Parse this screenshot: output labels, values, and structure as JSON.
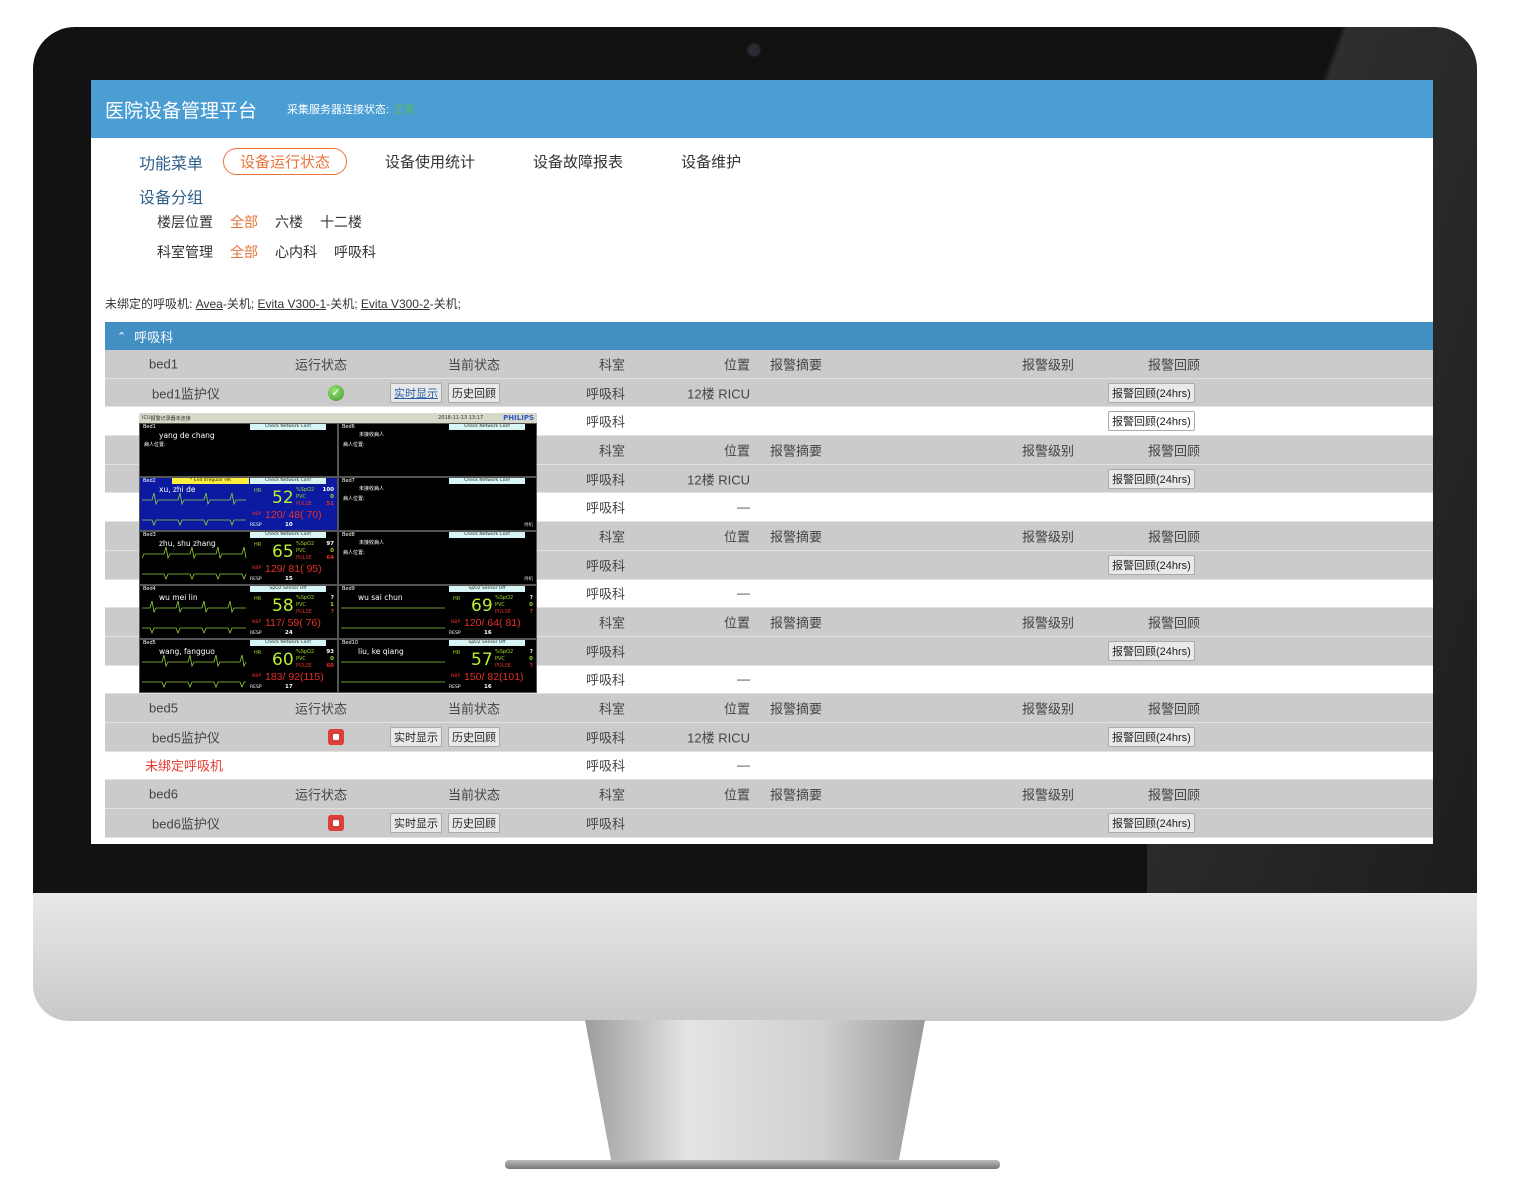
{
  "header": {
    "title": "医院设备管理平台",
    "conn_label": "采集服务器连接状态:",
    "conn_status": "正常",
    "conn_color": "#5cb85c"
  },
  "nav": {
    "label": "功能菜单",
    "items": [
      {
        "label": "设备运行状态",
        "active": true
      },
      {
        "label": "设备使用统计"
      },
      {
        "label": "设备故障报表"
      },
      {
        "label": "设备维护"
      }
    ]
  },
  "group": {
    "title": "设备分组",
    "floor": {
      "label": "楼层位置",
      "options": [
        "全部",
        "六楼",
        "十二楼"
      ],
      "selected": "全部"
    },
    "dept": {
      "label": "科室管理",
      "options": [
        "全部",
        "心内科",
        "呼吸科"
      ],
      "selected": "全部"
    }
  },
  "unbound": {
    "prefix": "未绑定的呼吸机:",
    "items": [
      {
        "name": "Avea",
        "status": "-关机;"
      },
      {
        "name": "Evita V300-1",
        "status": "-关机;"
      },
      {
        "name": "Evita V300-2",
        "status": "-关机;"
      }
    ]
  },
  "section": {
    "title": "呼吸科",
    "icon": "chevron-up-icon"
  },
  "columns": {
    "run": "运行状态",
    "cur": "当前状态",
    "dept": "科室",
    "pos": "位置",
    "sum": "报警摘要",
    "lvl": "报警级别",
    "rev": "报警回顾"
  },
  "buttons": {
    "live": "实时显示",
    "history": "历史回顾",
    "review": "报警回顾(24hrs)"
  },
  "beds": [
    {
      "name": "bed1",
      "device": "bed1监护仪",
      "status": "ok",
      "dept": "呼吸科",
      "pos": "12楼 RICU",
      "vent": {
        "label": "",
        "dept": "呼吸科",
        "pos": "",
        "review": true
      }
    },
    {
      "name": "",
      "device": "",
      "status": "",
      "dept": "呼吸科",
      "pos": "12楼 RICU",
      "vent": {
        "label": "",
        "dept": "呼吸科",
        "pos": "—",
        "review": false
      }
    },
    {
      "name": "",
      "device": "",
      "status": "",
      "dept": "呼吸科",
      "pos": "",
      "vent": {
        "label": "",
        "dept": "呼吸科",
        "pos": "—",
        "review": false
      }
    },
    {
      "name": "",
      "device": "",
      "status": "",
      "dept": "呼吸科",
      "pos": "",
      "vent": {
        "label": "",
        "dept": "呼吸科",
        "pos": "—",
        "review": false
      }
    },
    {
      "name": "bed5",
      "device": "bed5监护仪",
      "status": "stop",
      "dept": "呼吸科",
      "pos": "12楼 RICU",
      "vent": {
        "label": "未绑定呼吸机",
        "dept": "呼吸科",
        "pos": "—",
        "review": false
      }
    },
    {
      "name": "bed6",
      "device": "bed6监护仪",
      "status": "stop",
      "dept": "呼吸科",
      "pos": "",
      "vent": null
    }
  ],
  "monitor": {
    "unit": "ICU",
    "recorder": "报警记录器未连接",
    "datetime": "2018-11-13 13:17",
    "brand": "PHILIPS",
    "cells": [
      {
        "bed": "Bed1",
        "net": "Check Network Conf",
        "patient": "yang de chang",
        "pos_label": "病人位置:"
      },
      {
        "bed": "Bed6",
        "net": "Check Network Conf",
        "nopatient": "未接收病人",
        "pos_label": "病人位置:"
      },
      {
        "bed": "Bed2",
        "alarm": "* End Irregular HR",
        "net": "Check Network Conf",
        "patient": "xu, zhi de",
        "hr": "52",
        "spo2": "100",
        "pvc": "0",
        "pulse": "51",
        "nbp": "120/ 48( 70)",
        "resp": "10",
        "selected": true
      },
      {
        "bed": "Bed7",
        "net": "Check Network Conf",
        "nopatient": "未接收病人",
        "pos_label": "病人位置:",
        "tag": "待机"
      },
      {
        "bed": "Bed3",
        "net": "Check Network Conf",
        "patient": "zhu, shu zhang",
        "hr": "65",
        "spo2": "97",
        "pvc": "0",
        "pulse": "64",
        "nbp": "129/ 81( 95)",
        "resp": "15"
      },
      {
        "bed": "Bed8",
        "net": "Check Network Conf",
        "nopatient": "未接收病人",
        "pos_label": "病人位置:",
        "tag": "待机"
      },
      {
        "bed": "Bed4",
        "net": "SpO2  Sensor Off",
        "patient": "wu mei lin",
        "hr": "58",
        "spo2": "?",
        "pvc": "1",
        "pulse": "?",
        "nbp": "117/ 59( 76)",
        "resp": "24"
      },
      {
        "bed": "Bed9",
        "net": "SpO2  Sensor Off",
        "patient": "wu sai chun",
        "hr": "69",
        "spo2": "?",
        "pvc": "0",
        "pulse": "?",
        "nbp": "120/ 64( 81)",
        "resp": "16"
      },
      {
        "bed": "Bed5",
        "net": "Check Network Conf",
        "patient": "wang, fangguo",
        "hr": "60",
        "spo2": "93",
        "pvc": "0",
        "pulse": "60",
        "nbp": "183/ 92(115)",
        "resp": "17"
      },
      {
        "bed": "Bed10",
        "net": "SpO2  Sensor Off",
        "patient": "liu, ke qiang",
        "hr": "57",
        "spo2": "?",
        "pvc": "0",
        "pulse": "?",
        "nbp": "150/ 82(101)",
        "resp": "16"
      }
    ],
    "labels": {
      "hr": "HR",
      "spo2": "%SpO2",
      "pvc": "PVC",
      "pulse": "PULSE",
      "nbp": "NBP",
      "resp": "RESP"
    }
  }
}
